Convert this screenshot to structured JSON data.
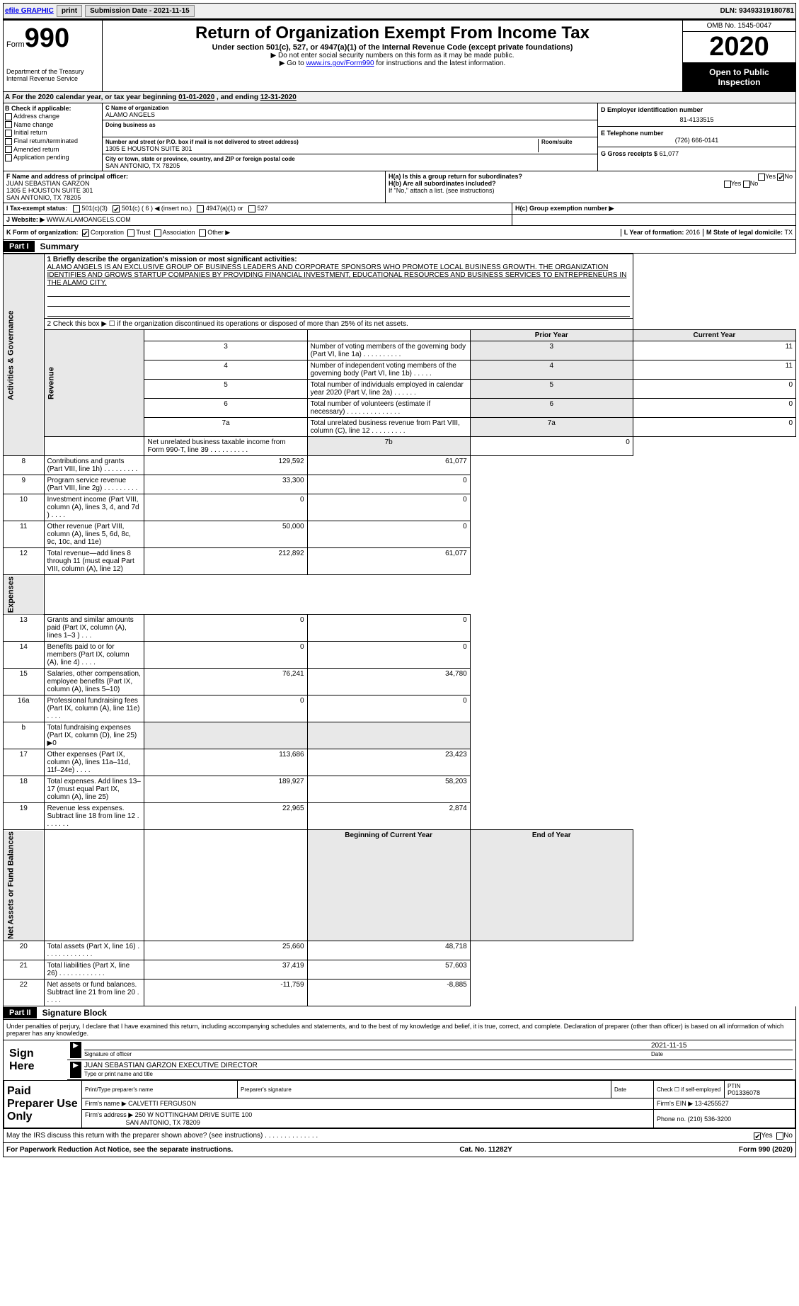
{
  "topbar": {
    "efile_label": "efile GRAPHIC",
    "print_label": "print",
    "submission_label": "Submission Date - 2021-11-15",
    "dln_label": "DLN: 93493319180781"
  },
  "header": {
    "form_label": "Form",
    "form_number": "990",
    "dept": "Department of the Treasury",
    "irs": "Internal Revenue Service",
    "title": "Return of Organization Exempt From Income Tax",
    "subtitle": "Under section 501(c), 527, or 4947(a)(1) of the Internal Revenue Code (except private foundations)",
    "note1": "▶ Do not enter social security numbers on this form as it may be made public.",
    "note2_prefix": "▶ Go to ",
    "note2_link": "www.irs.gov/Form990",
    "note2_suffix": " for instructions and the latest information.",
    "omb": "OMB No. 1545-0047",
    "year": "2020",
    "open_public": "Open to Public Inspection"
  },
  "tax_year": {
    "prefix_a": "A",
    "text": "For the 2020 calendar year, or tax year beginning ",
    "begin": "01-01-2020",
    "mid": " , and ending ",
    "end": "12-31-2020"
  },
  "section_b": {
    "label": "B Check if applicable:",
    "opts": [
      "Address change",
      "Name change",
      "Initial return",
      "Final return/terminated",
      "Amended return",
      "Application pending"
    ]
  },
  "section_c": {
    "name_label": "C Name of organization",
    "name": "ALAMO ANGELS",
    "dba_label": "Doing business as",
    "addr_label": "Number and street (or P.O. box if mail is not delivered to street address)",
    "room_label": "Room/suite",
    "addr": "1305 E HOUSTON SUITE 301",
    "city_label": "City or town, state or province, country, and ZIP or foreign postal code",
    "city": "SAN ANTONIO, TX  78205"
  },
  "section_d": {
    "label": "D Employer identification number",
    "value": "81-4133515"
  },
  "section_e": {
    "label": "E Telephone number",
    "value": "(726) 666-0141"
  },
  "section_g": {
    "label": "G Gross receipts $",
    "value": "61,077"
  },
  "section_f": {
    "label": "F  Name and address of principal officer:",
    "name": "JUAN SEBASTIAN GARZON",
    "line1": "1305 E HOUSTON SUITE 301",
    "line2": "SAN ANTONIO, TX  78205"
  },
  "section_h": {
    "ha_label": "H(a)  Is this a group return for subordinates?",
    "hb_label": "H(b)  Are all subordinates included?",
    "hb_note": "If \"No,\" attach a list. (see instructions)",
    "hc_label": "H(c)  Group exemption number ▶",
    "yes": "Yes",
    "no": "No"
  },
  "row_i": {
    "label": "I   Tax-exempt status:",
    "c3": "501(c)(3)",
    "c": "501(c) ( 6 ) ◀ (insert no.)",
    "a1": "4947(a)(1) or",
    "s527": "527"
  },
  "row_j": {
    "label": "J   Website: ▶",
    "value": " WWW.ALAMOANGELS.COM"
  },
  "row_k": {
    "label": "K Form of organization:",
    "opts": [
      "Corporation",
      "Trust",
      "Association",
      "Other ▶"
    ],
    "l_label": "L Year of formation: ",
    "l_value": "2016",
    "m_label": "M State of legal domicile: ",
    "m_value": "TX"
  },
  "part1": {
    "header": "Part I",
    "title": "Summary",
    "line1_label": "1  Briefly describe the organization's mission or most significant activities:",
    "line1_text": "ALAMO ANGELS IS AN EXCLUSIVE GROUP OF BUSINESS LEADERS AND CORPORATE SPONSORS WHO PROMOTE LOCAL BUSINESS GROWTH. THE ORGANIZATION IDENTIFIES AND GROWS STARTUP COMPANIES BY PROVIDING FINANCIAL INVESTMENT, EDUCATIONAL RESOURCES AND BUSINESS SERVICES TO ENTREPRENEURS IN THE ALAMO CITY.",
    "line2": "2  Check this box ▶ ☐ if the organization discontinued its operations or disposed of more than 25% of its net assets.",
    "sections": {
      "governance": "Activities & Governance",
      "revenue": "Revenue",
      "expenses": "Expenses",
      "netassets": "Net Assets or Fund Balances"
    },
    "gov_rows": [
      {
        "n": "3",
        "t": "Number of voting members of the governing body (Part VI, line 1a)  .  .  .  .  .  .  .  .  .  .",
        "b": "3",
        "v": "11"
      },
      {
        "n": "4",
        "t": "Number of independent voting members of the governing body (Part VI, line 1b)  .  .  .  .  .",
        "b": "4",
        "v": "11"
      },
      {
        "n": "5",
        "t": "Total number of individuals employed in calendar year 2020 (Part V, line 2a)  .  .  .  .  .  .",
        "b": "5",
        "v": "0"
      },
      {
        "n": "6",
        "t": "Total number of volunteers (estimate if necessary)  .  .  .  .  .  .  .  .  .  .  .  .  .  .",
        "b": "6",
        "v": "0"
      },
      {
        "n": "7a",
        "t": "Total unrelated business revenue from Part VIII, column (C), line 12  .  .  .  .  .  .  .  .  .",
        "b": "7a",
        "v": "0"
      },
      {
        "n": "",
        "t": "Net unrelated business taxable income from Form 990-T, line 39  .  .  .  .  .  .  .  .  .  .",
        "b": "7b",
        "v": "0"
      }
    ],
    "prior_year": "Prior Year",
    "current_year": "Current Year",
    "rev_rows": [
      {
        "n": "8",
        "t": "Contributions and grants (Part VIII, line 1h)  .  .  .  .  .  .  .  .  .",
        "p": "129,592",
        "c": "61,077"
      },
      {
        "n": "9",
        "t": "Program service revenue (Part VIII, line 2g)  .  .  .  .  .  .  .  .  .",
        "p": "33,300",
        "c": "0"
      },
      {
        "n": "10",
        "t": "Investment income (Part VIII, column (A), lines 3, 4, and 7d )  .  .  .  .",
        "p": "0",
        "c": "0"
      },
      {
        "n": "11",
        "t": "Other revenue (Part VIII, column (A), lines 5, 6d, 8c, 9c, 10c, and 11e)",
        "p": "50,000",
        "c": "0"
      },
      {
        "n": "12",
        "t": "Total revenue—add lines 8 through 11 (must equal Part VIII, column (A), line 12)",
        "p": "212,892",
        "c": "61,077"
      }
    ],
    "exp_rows": [
      {
        "n": "13",
        "t": "Grants and similar amounts paid (Part IX, column (A), lines 1–3 )  .  .  .",
        "p": "0",
        "c": "0"
      },
      {
        "n": "14",
        "t": "Benefits paid to or for members (Part IX, column (A), line 4)  .  .  .  .",
        "p": "0",
        "c": "0"
      },
      {
        "n": "15",
        "t": "Salaries, other compensation, employee benefits (Part IX, column (A), lines 5–10)",
        "p": "76,241",
        "c": "34,780"
      },
      {
        "n": "16a",
        "t": "Professional fundraising fees (Part IX, column (A), line 11e)  .  .  .  .",
        "p": "0",
        "c": "0"
      },
      {
        "n": "b",
        "t": "Total fundraising expenses (Part IX, column (D), line 25) ▶0",
        "p": "",
        "c": ""
      },
      {
        "n": "17",
        "t": "Other expenses (Part IX, column (A), lines 11a–11d, 11f–24e)  .  .  .  .",
        "p": "113,686",
        "c": "23,423"
      },
      {
        "n": "18",
        "t": "Total expenses. Add lines 13–17 (must equal Part IX, column (A), line 25)",
        "p": "189,927",
        "c": "58,203"
      },
      {
        "n": "19",
        "t": "Revenue less expenses. Subtract line 18 from line 12  .  .  .  .  .  .  .",
        "p": "22,965",
        "c": "2,874"
      }
    ],
    "begin_year": "Beginning of Current Year",
    "end_year": "End of Year",
    "net_rows": [
      {
        "n": "20",
        "t": "Total assets (Part X, line 16)  .  .  .  .  .  .  .  .  .  .  .  .  .",
        "p": "25,660",
        "c": "48,718"
      },
      {
        "n": "21",
        "t": "Total liabilities (Part X, line 26)  .  .  .  .  .  .  .  .  .  .  .  .",
        "p": "37,419",
        "c": "57,603"
      },
      {
        "n": "22",
        "t": "Net assets or fund balances. Subtract line 21 from line 20  .  .  .  .  .",
        "p": "-11,759",
        "c": "-8,885"
      }
    ]
  },
  "part2": {
    "header": "Part II",
    "title": "Signature Block",
    "declaration": "Under penalties of perjury, I declare that I have examined this return, including accompanying schedules and statements, and to the best of my knowledge and belief, it is true, correct, and complete. Declaration of preparer (other than officer) is based on all information of which preparer has any knowledge.",
    "sign_here": "Sign Here",
    "sig_officer_label": "Signature of officer",
    "date_label": "Date",
    "sig_date": "2021-11-15",
    "officer_name": "JUAN SEBASTIAN GARZON  EXECUTIVE DIRECTOR",
    "type_name_label": "Type or print name and title",
    "paid_preparer": "Paid Preparer Use Only",
    "prep_name_label": "Print/Type preparer's name",
    "prep_sig_label": "Preparer's signature",
    "check_self": "Check ☐ if self-employed",
    "ptin_label": "PTIN",
    "ptin": "P01336078",
    "firm_name_label": "Firm's name    ▶",
    "firm_name": "CALVETTI FERGUSON",
    "firm_ein_label": "Firm's EIN ▶",
    "firm_ein": "13-4255527",
    "firm_addr_label": "Firm's address ▶",
    "firm_addr1": "250 W NOTTINGHAM DRIVE SUITE 100",
    "firm_addr2": "SAN ANTONIO, TX  78209",
    "phone_label": "Phone no.",
    "phone": "(210) 536-3200",
    "discuss": "May the IRS discuss this return with the preparer shown above? (see instructions)  .  .  .  .  .  .  .  .  .  .  .  .  .  ."
  },
  "footer": {
    "paperwork": "For Paperwork Reduction Act Notice, see the separate instructions.",
    "cat": "Cat. No. 11282Y",
    "form": "Form 990 (2020)"
  }
}
